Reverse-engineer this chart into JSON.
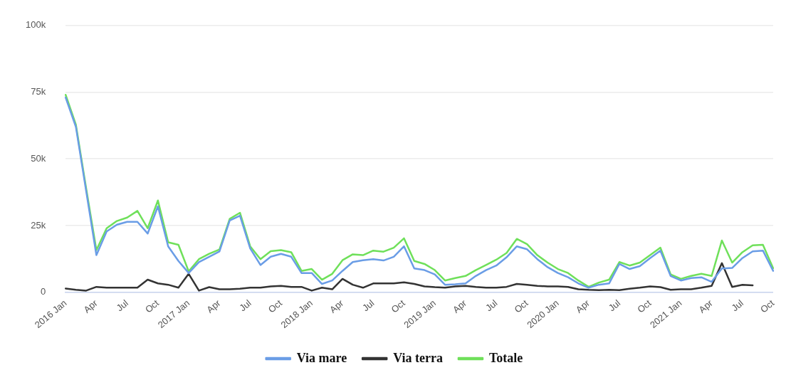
{
  "chart_data": {
    "type": "line",
    "categories": [
      "2016 Jan",
      null,
      null,
      "Apr",
      null,
      null,
      "Jul",
      null,
      null,
      "Oct",
      null,
      null,
      "2017 Jan",
      null,
      null,
      "Apr",
      null,
      null,
      "Jul",
      null,
      null,
      "Oct",
      null,
      null,
      "2018 Jan",
      null,
      null,
      "Apr",
      null,
      null,
      "Jul",
      null,
      null,
      "Oct",
      null,
      null,
      "2019 Jan",
      null,
      null,
      "Apr",
      null,
      null,
      "Jul",
      null,
      null,
      "Oct",
      null,
      null,
      "2020 Jan",
      null,
      null,
      "Apr",
      null,
      null,
      "Jul",
      null,
      null,
      "Oct",
      null,
      null,
      "2021 Jan",
      null,
      null,
      "Apr",
      null,
      null,
      "Jul",
      null,
      null,
      "Oct"
    ],
    "series": [
      {
        "name": "Via mare",
        "color": "#6a9de6",
        "values": [
          73,
          62,
          38,
          13.9,
          22.8,
          25.3,
          26.4,
          26.4,
          22,
          32.2,
          17.2,
          11.7,
          7.2,
          11.3,
          13.3,
          15.3,
          26.9,
          28.7,
          16.4,
          10.2,
          13.3,
          14.4,
          13.3,
          7.2,
          7.2,
          3.1,
          4.4,
          8,
          11.3,
          12,
          12.4,
          11.9,
          13.3,
          17.2,
          8.9,
          8.3,
          6.7,
          2.8,
          3,
          3.3,
          6.1,
          8.3,
          10,
          13.1,
          17.2,
          16.1,
          12.4,
          9.4,
          7.2,
          5.6,
          3.3,
          1.7,
          2.8,
          3.3,
          10.6,
          8.7,
          9.8,
          12.8,
          15.6,
          6.1,
          4.4,
          5.3,
          5.6,
          3.9,
          8.9,
          9.1,
          12.8,
          15.3,
          15.6,
          8
        ]
      },
      {
        "name": "Via terra",
        "color": "#333333",
        "values": [
          1.4,
          0.9,
          0.6,
          2,
          1.7,
          1.7,
          1.7,
          1.7,
          4.7,
          3.3,
          2.8,
          1.7,
          6.9,
          0.6,
          1.9,
          1.1,
          1.1,
          1.3,
          1.7,
          1.7,
          2.2,
          2.4,
          2,
          2,
          0.6,
          1.7,
          1.1,
          5,
          2.8,
          1.7,
          3.3,
          3.3,
          3.3,
          3.7,
          3.1,
          2.2,
          1.9,
          1.7,
          2.2,
          2.4,
          2,
          1.7,
          1.7,
          2,
          3.1,
          2.8,
          2.4,
          2.2,
          2.2,
          2,
          1.1,
          0.9,
          0.8,
          0.9,
          0.8,
          1.3,
          1.7,
          2.2,
          1.9,
          0.9,
          1.1,
          1.1,
          1.7,
          2.4,
          10.9,
          2,
          2.8,
          2.6,
          null,
          null
        ]
      },
      {
        "name": "Totale",
        "color": "#6fe05a",
        "values": [
          74,
          62.8,
          39,
          15.8,
          24,
          26.7,
          28,
          30.5,
          24,
          34.4,
          18.7,
          17.8,
          7.8,
          12.4,
          14.4,
          16,
          27.5,
          29.8,
          17.2,
          12.4,
          15.4,
          15.8,
          15,
          8,
          8.7,
          4.7,
          6.9,
          12,
          14.2,
          13.9,
          15.6,
          15.2,
          16.7,
          20.2,
          11.7,
          10.6,
          8.3,
          4.4,
          5.3,
          6.1,
          8.3,
          10.2,
          12.2,
          14.7,
          20,
          18,
          13.9,
          11.1,
          8.7,
          7.2,
          4.4,
          2,
          3.6,
          4.7,
          11.3,
          10,
          11.1,
          13.9,
          16.7,
          6.7,
          5,
          6.1,
          6.9,
          6.1,
          19.4,
          11.1,
          15,
          17.6,
          17.8,
          9
        ]
      }
    ],
    "ylim": [
      0,
      100
    ],
    "yticks": [
      {
        "value": 0,
        "label": "0"
      },
      {
        "value": 25,
        "label": "25k"
      },
      {
        "value": 50,
        "label": "50k"
      },
      {
        "value": 75,
        "label": "75k"
      },
      {
        "value": 100,
        "label": "100k"
      }
    ],
    "grid": "y",
    "legend": "bottom",
    "marker": "none",
    "line_style": "solid"
  }
}
